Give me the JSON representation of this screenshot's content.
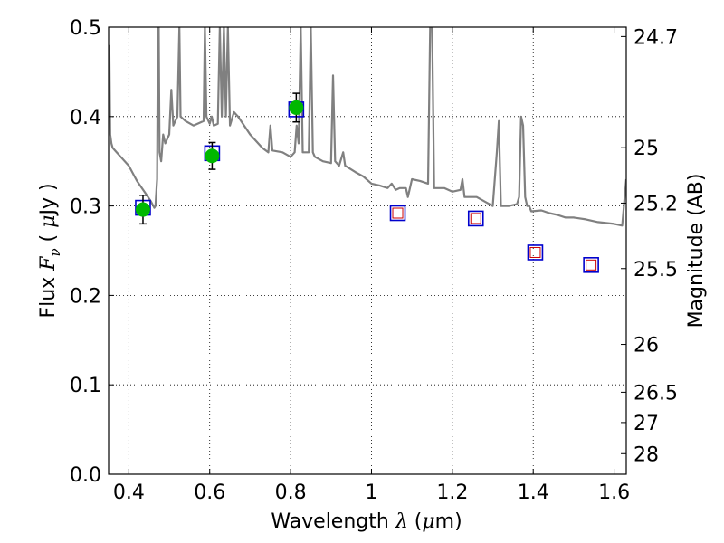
{
  "chart_data": {
    "type": "scatter",
    "title": "",
    "xlabel_parts": [
      "Wavelength  ",
      "λ",
      " (",
      "μ",
      "m)"
    ],
    "ylabel_parts": [
      "Flux  ",
      "F",
      "ν",
      "  ( ",
      "μ",
      "Jy )"
    ],
    "y2label": "Magnitude (AB)",
    "xlim": [
      0.35,
      1.63
    ],
    "ylim": [
      0.0,
      0.5
    ],
    "x_ticks": [
      0.4,
      0.6,
      0.8,
      1.0,
      1.2,
      1.4,
      1.6
    ],
    "x_tick_labels": [
      "0.4",
      "0.6",
      "0.8",
      "1",
      "1.2",
      "1.4",
      "1.6"
    ],
    "y_ticks": [
      0.0,
      0.1,
      0.2,
      0.3,
      0.4,
      0.5
    ],
    "y_tick_labels": [
      "0.0",
      "0.1",
      "0.2",
      "0.3",
      "0.4",
      "0.5"
    ],
    "y2_ticks": [
      {
        "flux": 0.4895,
        "label": "24.7"
      },
      {
        "flux": 0.3652,
        "label": "25"
      },
      {
        "flux": 0.3032,
        "label": "25.2"
      },
      {
        "flux": 0.23,
        "label": "25.5"
      },
      {
        "flux": 0.1452,
        "label": "26"
      },
      {
        "flux": 0.0917,
        "label": "26.5"
      },
      {
        "flux": 0.0578,
        "label": "27"
      },
      {
        "flux": 0.023,
        "label": "28"
      }
    ],
    "grid": true,
    "observed_points": [
      {
        "x": 0.435,
        "y": 0.296,
        "yerr": 0.016
      },
      {
        "x": 0.606,
        "y": 0.356,
        "yerr": 0.015
      },
      {
        "x": 0.814,
        "y": 0.41,
        "yerr": 0.016
      }
    ],
    "model_photometry": [
      {
        "x": 0.435,
        "y": 0.298
      },
      {
        "x": 0.606,
        "y": 0.359
      },
      {
        "x": 0.814,
        "y": 0.408
      },
      {
        "x": 1.065,
        "y": 0.292
      },
      {
        "x": 1.258,
        "y": 0.286
      },
      {
        "x": 1.405,
        "y": 0.248
      },
      {
        "x": 1.543,
        "y": 0.234
      }
    ],
    "upper_limits": [
      {
        "x": 1.065,
        "y": 0.292
      },
      {
        "x": 1.258,
        "y": 0.286
      },
      {
        "x": 1.405,
        "y": 0.248
      },
      {
        "x": 1.543,
        "y": 0.234
      }
    ],
    "model_spectrum": [
      [
        0.35,
        0.48
      ],
      [
        0.352,
        0.47
      ],
      [
        0.354,
        0.38
      ],
      [
        0.357,
        0.37
      ],
      [
        0.36,
        0.365
      ],
      [
        0.38,
        0.355
      ],
      [
        0.4,
        0.345
      ],
      [
        0.42,
        0.328
      ],
      [
        0.44,
        0.315
      ],
      [
        0.455,
        0.305
      ],
      [
        0.463,
        0.298
      ],
      [
        0.466,
        0.3
      ],
      [
        0.47,
        0.33
      ],
      [
        0.472,
        0.5
      ],
      [
        0.474,
        0.5
      ],
      [
        0.476,
        0.36
      ],
      [
        0.48,
        0.35
      ],
      [
        0.485,
        0.38
      ],
      [
        0.49,
        0.37
      ],
      [
        0.5,
        0.38
      ],
      [
        0.505,
        0.43
      ],
      [
        0.51,
        0.39
      ],
      [
        0.52,
        0.4
      ],
      [
        0.525,
        0.5
      ],
      [
        0.528,
        0.4
      ],
      [
        0.54,
        0.395
      ],
      [
        0.56,
        0.39
      ],
      [
        0.585,
        0.395
      ],
      [
        0.588,
        0.5
      ],
      [
        0.592,
        0.4
      ],
      [
        0.6,
        0.392
      ],
      [
        0.605,
        0.4
      ],
      [
        0.61,
        0.39
      ],
      [
        0.62,
        0.392
      ],
      [
        0.625,
        0.5
      ],
      [
        0.63,
        0.4
      ],
      [
        0.635,
        0.5
      ],
      [
        0.64,
        0.4
      ],
      [
        0.645,
        0.5
      ],
      [
        0.65,
        0.39
      ],
      [
        0.66,
        0.405
      ],
      [
        0.67,
        0.4
      ],
      [
        0.7,
        0.38
      ],
      [
        0.73,
        0.365
      ],
      [
        0.745,
        0.36
      ],
      [
        0.75,
        0.39
      ],
      [
        0.755,
        0.362
      ],
      [
        0.78,
        0.36
      ],
      [
        0.8,
        0.355
      ],
      [
        0.81,
        0.36
      ],
      [
        0.815,
        0.39
      ],
      [
        0.82,
        0.37
      ],
      [
        0.825,
        0.5
      ],
      [
        0.83,
        0.36
      ],
      [
        0.845,
        0.36
      ],
      [
        0.85,
        0.5
      ],
      [
        0.855,
        0.36
      ],
      [
        0.86,
        0.355
      ],
      [
        0.88,
        0.35
      ],
      [
        0.9,
        0.348
      ],
      [
        0.905,
        0.446
      ],
      [
        0.91,
        0.35
      ],
      [
        0.92,
        0.345
      ],
      [
        0.93,
        0.36
      ],
      [
        0.935,
        0.345
      ],
      [
        0.96,
        0.338
      ],
      [
        0.98,
        0.333
      ],
      [
        1.0,
        0.325
      ],
      [
        1.02,
        0.323
      ],
      [
        1.04,
        0.32
      ],
      [
        1.05,
        0.325
      ],
      [
        1.06,
        0.318
      ],
      [
        1.07,
        0.32
      ],
      [
        1.085,
        0.32
      ],
      [
        1.09,
        0.31
      ],
      [
        1.1,
        0.33
      ],
      [
        1.12,
        0.328
      ],
      [
        1.14,
        0.325
      ],
      [
        1.145,
        0.5
      ],
      [
        1.15,
        0.5
      ],
      [
        1.155,
        0.32
      ],
      [
        1.18,
        0.32
      ],
      [
        1.2,
        0.316
      ],
      [
        1.22,
        0.318
      ],
      [
        1.225,
        0.33
      ],
      [
        1.23,
        0.31
      ],
      [
        1.26,
        0.31
      ],
      [
        1.28,
        0.305
      ],
      [
        1.3,
        0.3
      ],
      [
        1.31,
        0.36
      ],
      [
        1.315,
        0.395
      ],
      [
        1.32,
        0.3
      ],
      [
        1.34,
        0.3
      ],
      [
        1.36,
        0.302
      ],
      [
        1.365,
        0.31
      ],
      [
        1.37,
        0.4
      ],
      [
        1.375,
        0.39
      ],
      [
        1.38,
        0.31
      ],
      [
        1.385,
        0.3
      ],
      [
        1.39,
        0.3
      ],
      [
        1.395,
        0.294
      ],
      [
        1.42,
        0.295
      ],
      [
        1.44,
        0.292
      ],
      [
        1.46,
        0.29
      ],
      [
        1.48,
        0.287
      ],
      [
        1.5,
        0.287
      ],
      [
        1.53,
        0.285
      ],
      [
        1.56,
        0.282
      ],
      [
        1.6,
        0.28
      ],
      [
        1.62,
        0.278
      ],
      [
        1.63,
        0.33
      ]
    ],
    "colors": {
      "spectrum": "#808080",
      "observed": "#00b800",
      "model_box": "#0000cc",
      "upper_limit_box": "#cc0000",
      "errorbar": "#000000",
      "grid": "#000000"
    }
  }
}
